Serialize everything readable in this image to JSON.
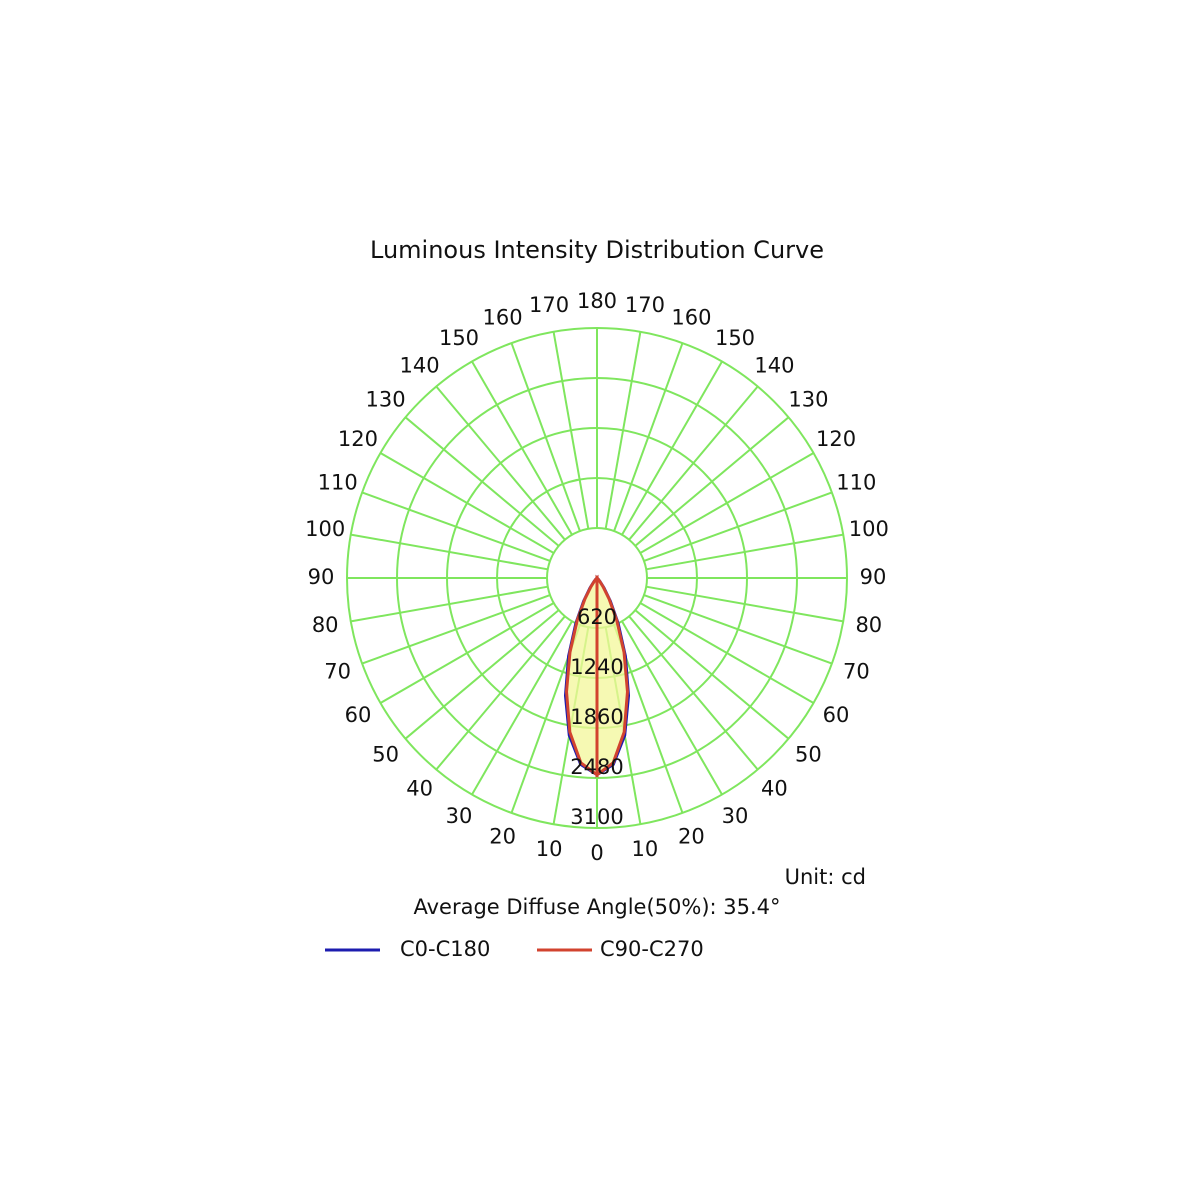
{
  "chart_data": {
    "type": "polar",
    "title": "Luminous Intensity Distribution Curve",
    "unit_label": "Unit: cd",
    "annotation": "Average Diffuse Angle(50%): 35.4°",
    "x": [
      0,
      5,
      10,
      15,
      20,
      25,
      30,
      35,
      40,
      45,
      50,
      55,
      60,
      65,
      70,
      75,
      80,
      85,
      90
    ],
    "series": [
      {
        "name": "C0-C180",
        "color": "#1c1caf",
        "values": [
          2440,
          2320,
          1980,
          1510,
          1030,
          620,
          330,
          150,
          60,
          20,
          5,
          0,
          0,
          0,
          0,
          0,
          0,
          0,
          0
        ]
      },
      {
        "name": "C90-C270",
        "color": "#d2432f",
        "values": [
          2440,
          2300,
          1940,
          1460,
          980,
          580,
          300,
          130,
          50,
          15,
          4,
          0,
          0,
          0,
          0,
          0,
          0,
          0,
          0
        ]
      }
    ],
    "rlim": [
      0,
      3100
    ],
    "rticks": [
      620,
      1240,
      1860,
      2480,
      3100
    ],
    "angle_ticks": [
      0,
      10,
      20,
      30,
      40,
      50,
      60,
      70,
      80,
      90,
      100,
      110,
      120,
      130,
      140,
      150,
      160,
      170,
      180
    ],
    "grid": true,
    "grid_color": "#7fe65e",
    "fill_color": "#f4f89a"
  }
}
